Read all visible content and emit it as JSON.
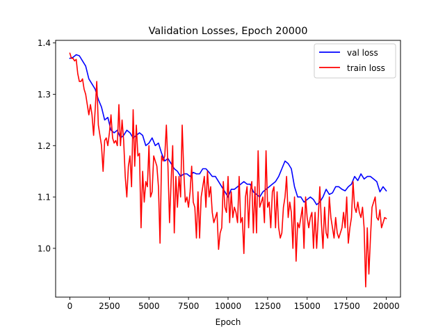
{
  "chart_data": {
    "type": "line",
    "title": "Validation Losses, Epoch 20000",
    "xlabel": "Epoch",
    "ylabel": "",
    "xlim": [
      -900,
      20900
    ],
    "ylim": [
      0.905,
      1.405
    ],
    "xticks": [
      0,
      2500,
      5000,
      7500,
      10000,
      12500,
      15000,
      17500,
      20000
    ],
    "yticks": [
      1.0,
      1.1,
      1.2,
      1.3,
      1.4
    ],
    "ytick_labels": [
      "1.0",
      "1.1",
      "1.2",
      "1.3",
      "1.4"
    ],
    "grid": false,
    "legend_position": "top-right",
    "series": [
      {
        "name": "val loss",
        "color": "#0000ff",
        "points": [
          [
            0,
            1.37
          ],
          [
            200,
            1.372
          ],
          [
            400,
            1.377
          ],
          [
            600,
            1.375
          ],
          [
            800,
            1.365
          ],
          [
            1000,
            1.355
          ],
          [
            1200,
            1.33
          ],
          [
            1400,
            1.32
          ],
          [
            1600,
            1.31
          ],
          [
            1800,
            1.29
          ],
          [
            2000,
            1.275
          ],
          [
            2200,
            1.25
          ],
          [
            2400,
            1.255
          ],
          [
            2600,
            1.23
          ],
          [
            2800,
            1.225
          ],
          [
            3000,
            1.23
          ],
          [
            3200,
            1.215
          ],
          [
            3400,
            1.22
          ],
          [
            3600,
            1.23
          ],
          [
            3800,
            1.225
          ],
          [
            4000,
            1.215
          ],
          [
            4200,
            1.22
          ],
          [
            4400,
            1.225
          ],
          [
            4600,
            1.22
          ],
          [
            4800,
            1.2
          ],
          [
            5000,
            1.205
          ],
          [
            5200,
            1.215
          ],
          [
            5400,
            1.2
          ],
          [
            5600,
            1.205
          ],
          [
            5800,
            1.185
          ],
          [
            6000,
            1.17
          ],
          [
            6200,
            1.175
          ],
          [
            6400,
            1.165
          ],
          [
            6600,
            1.155
          ],
          [
            6800,
            1.15
          ],
          [
            7000,
            1.14
          ],
          [
            7200,
            1.145
          ],
          [
            7400,
            1.145
          ],
          [
            7600,
            1.14
          ],
          [
            7800,
            1.148
          ],
          [
            8000,
            1.145
          ],
          [
            8200,
            1.145
          ],
          [
            8400,
            1.155
          ],
          [
            8600,
            1.155
          ],
          [
            8800,
            1.148
          ],
          [
            9000,
            1.14
          ],
          [
            9200,
            1.14
          ],
          [
            9400,
            1.13
          ],
          [
            9600,
            1.12
          ],
          [
            9800,
            1.11
          ],
          [
            10000,
            1.1
          ],
          [
            10200,
            1.115
          ],
          [
            10400,
            1.115
          ],
          [
            10600,
            1.12
          ],
          [
            10800,
            1.125
          ],
          [
            11000,
            1.13
          ],
          [
            11200,
            1.125
          ],
          [
            11400,
            1.125
          ],
          [
            11600,
            1.11
          ],
          [
            11800,
            1.105
          ],
          [
            12000,
            1.1
          ],
          [
            12200,
            1.11
          ],
          [
            12400,
            1.115
          ],
          [
            12600,
            1.12
          ],
          [
            12800,
            1.125
          ],
          [
            13000,
            1.13
          ],
          [
            13200,
            1.14
          ],
          [
            13400,
            1.155
          ],
          [
            13600,
            1.17
          ],
          [
            13800,
            1.165
          ],
          [
            14000,
            1.155
          ],
          [
            14200,
            1.12
          ],
          [
            14400,
            1.1
          ],
          [
            14600,
            1.1
          ],
          [
            14800,
            1.09
          ],
          [
            15000,
            1.095
          ],
          [
            15200,
            1.1
          ],
          [
            15400,
            1.095
          ],
          [
            15600,
            1.085
          ],
          [
            15800,
            1.09
          ],
          [
            16000,
            1.1
          ],
          [
            16200,
            1.115
          ],
          [
            16400,
            1.105
          ],
          [
            16600,
            1.108
          ],
          [
            16800,
            1.12
          ],
          [
            17000,
            1.12
          ],
          [
            17200,
            1.115
          ],
          [
            17400,
            1.112
          ],
          [
            17600,
            1.12
          ],
          [
            17800,
            1.125
          ],
          [
            18000,
            1.14
          ],
          [
            18200,
            1.132
          ],
          [
            18400,
            1.145
          ],
          [
            18600,
            1.135
          ],
          [
            18800,
            1.14
          ],
          [
            19000,
            1.14
          ],
          [
            19200,
            1.135
          ],
          [
            19400,
            1.13
          ],
          [
            19600,
            1.11
          ],
          [
            19800,
            1.12
          ],
          [
            20000,
            1.112
          ]
        ]
      },
      {
        "name": "train loss",
        "color": "#ff0000",
        "points": [
          [
            0,
            1.38
          ],
          [
            100,
            1.37
          ],
          [
            200,
            1.37
          ],
          [
            300,
            1.365
          ],
          [
            400,
            1.368
          ],
          [
            500,
            1.34
          ],
          [
            600,
            1.325
          ],
          [
            700,
            1.325
          ],
          [
            800,
            1.33
          ],
          [
            900,
            1.31
          ],
          [
            1000,
            1.3
          ],
          [
            1100,
            1.28
          ],
          [
            1200,
            1.26
          ],
          [
            1300,
            1.28
          ],
          [
            1400,
            1.26
          ],
          [
            1500,
            1.22
          ],
          [
            1600,
            1.27
          ],
          [
            1700,
            1.325
          ],
          [
            1800,
            1.24
          ],
          [
            1900,
            1.22
          ],
          [
            2000,
            1.2
          ],
          [
            2100,
            1.15
          ],
          [
            2200,
            1.21
          ],
          [
            2300,
            1.215
          ],
          [
            2400,
            1.2
          ],
          [
            2500,
            1.225
          ],
          [
            2600,
            1.26
          ],
          [
            2700,
            1.215
          ],
          [
            2800,
            1.205
          ],
          [
            2900,
            1.21
          ],
          [
            3000,
            1.2
          ],
          [
            3100,
            1.28
          ],
          [
            3200,
            1.2
          ],
          [
            3300,
            1.25
          ],
          [
            3400,
            1.21
          ],
          [
            3500,
            1.14
          ],
          [
            3600,
            1.1
          ],
          [
            3700,
            1.16
          ],
          [
            3800,
            1.18
          ],
          [
            3900,
            1.12
          ],
          [
            4000,
            1.27
          ],
          [
            4100,
            1.16
          ],
          [
            4200,
            1.24
          ],
          [
            4300,
            1.18
          ],
          [
            4400,
            1.185
          ],
          [
            4500,
            1.04
          ],
          [
            4600,
            1.15
          ],
          [
            4700,
            1.09
          ],
          [
            4800,
            1.13
          ],
          [
            4900,
            1.12
          ],
          [
            5000,
            1.2
          ],
          [
            5100,
            1.1
          ],
          [
            5200,
            1.11
          ],
          [
            5300,
            1.18
          ],
          [
            5400,
            1.17
          ],
          [
            5500,
            1.16
          ],
          [
            5600,
            1.12
          ],
          [
            5700,
            1.01
          ],
          [
            5800,
            1.18
          ],
          [
            5900,
            1.17
          ],
          [
            6000,
            1.18
          ],
          [
            6100,
            1.24
          ],
          [
            6200,
            1.16
          ],
          [
            6300,
            1.05
          ],
          [
            6400,
            1.13
          ],
          [
            6500,
            1.2
          ],
          [
            6600,
            1.03
          ],
          [
            6700,
            1.14
          ],
          [
            6800,
            1.08
          ],
          [
            6900,
            1.14
          ],
          [
            7000,
            1.1
          ],
          [
            7100,
            1.24
          ],
          [
            7200,
            1.15
          ],
          [
            7300,
            1.09
          ],
          [
            7400,
            1.1
          ],
          [
            7500,
            1.08
          ],
          [
            7600,
            1.11
          ],
          [
            7700,
            1.16
          ],
          [
            7800,
            1.09
          ],
          [
            7900,
            1.08
          ],
          [
            8000,
            1.02
          ],
          [
            8100,
            1.11
          ],
          [
            8200,
            1.02
          ],
          [
            8300,
            1.1
          ],
          [
            8400,
            1.12
          ],
          [
            8500,
            1.14
          ],
          [
            8600,
            1.08
          ],
          [
            8700,
            1.15
          ],
          [
            8800,
            1.1
          ],
          [
            8900,
            1.12
          ],
          [
            9000,
            1.07
          ],
          [
            9100,
            1.05
          ],
          [
            9200,
            1.06
          ],
          [
            9300,
            1.07
          ],
          [
            9400,
            0.998
          ],
          [
            9500,
            1.03
          ],
          [
            9600,
            1.04
          ],
          [
            9700,
            1.13
          ],
          [
            9800,
            1.08
          ],
          [
            9900,
            1.07
          ],
          [
            10000,
            1.14
          ],
          [
            10100,
            1.05
          ],
          [
            10200,
            1.11
          ],
          [
            10300,
            1.06
          ],
          [
            10400,
            1.08
          ],
          [
            10500,
            1.07
          ],
          [
            10600,
            1.05
          ],
          [
            10700,
            1.14
          ],
          [
            10800,
            1.05
          ],
          [
            10900,
            1.06
          ],
          [
            11000,
            0.99
          ],
          [
            11100,
            1.1
          ],
          [
            11200,
            1.12
          ],
          [
            11300,
            1.04
          ],
          [
            11400,
            1.11
          ],
          [
            11500,
            1.13
          ],
          [
            11600,
            1.03
          ],
          [
            11700,
            1.12
          ],
          [
            11800,
            1.03
          ],
          [
            11900,
            1.19
          ],
          [
            12000,
            1.08
          ],
          [
            12100,
            1.09
          ],
          [
            12200,
            1.1
          ],
          [
            12300,
            1.05
          ],
          [
            12400,
            1.19
          ],
          [
            12500,
            1.08
          ],
          [
            12600,
            1.09
          ],
          [
            12700,
            1.04
          ],
          [
            12800,
            1.11
          ],
          [
            12900,
            1.12
          ],
          [
            13000,
            1.04
          ],
          [
            13100,
            1.11
          ],
          [
            13200,
            1.04
          ],
          [
            13300,
            1.02
          ],
          [
            13400,
            1.03
          ],
          [
            13500,
            1.08
          ],
          [
            13600,
            1.1
          ],
          [
            13700,
            1.14
          ],
          [
            13800,
            1.06
          ],
          [
            13900,
            1.09
          ],
          [
            14000,
            1.07
          ],
          [
            14100,
            1.0
          ],
          [
            14200,
            1.1
          ],
          [
            14300,
            0.975
          ],
          [
            14400,
            1.05
          ],
          [
            14500,
            1.04
          ],
          [
            14600,
            1.06
          ],
          [
            14700,
            1.08
          ],
          [
            14800,
            1.0
          ],
          [
            14900,
            1.1
          ],
          [
            15000,
            1.06
          ],
          [
            15100,
            1.04
          ],
          [
            15200,
            1.06
          ],
          [
            15300,
            1.07
          ],
          [
            15400,
            1.0
          ],
          [
            15500,
            1.07
          ],
          [
            15600,
            1.0
          ],
          [
            15700,
            1.06
          ],
          [
            15800,
            1.12
          ],
          [
            15900,
            1.05
          ],
          [
            16000,
            1.0
          ],
          [
            16100,
            1.08
          ],
          [
            16200,
            1.03
          ],
          [
            16300,
            1.02
          ],
          [
            16400,
            1.1
          ],
          [
            16500,
            1.06
          ],
          [
            16600,
            1.04
          ],
          [
            16700,
            1.02
          ],
          [
            16800,
            1.06
          ],
          [
            16900,
            1.03
          ],
          [
            17000,
            1.02
          ],
          [
            17100,
            1.03
          ],
          [
            17200,
            1.04
          ],
          [
            17300,
            1.07
          ],
          [
            17400,
            1.04
          ],
          [
            17500,
            1.1
          ],
          [
            17600,
            1.01
          ],
          [
            17700,
            1.04
          ],
          [
            17800,
            1.06
          ],
          [
            17900,
            1.13
          ],
          [
            18000,
            1.08
          ],
          [
            18100,
            1.07
          ],
          [
            18200,
            1.09
          ],
          [
            18300,
            1.07
          ],
          [
            18400,
            1.06
          ],
          [
            18500,
            1.08
          ],
          [
            18600,
            1.04
          ],
          [
            18700,
            0.925
          ],
          [
            18800,
            1.04
          ],
          [
            18900,
            0.95
          ],
          [
            19000,
            1.02
          ],
          [
            19100,
            1.08
          ],
          [
            19200,
            1.09
          ],
          [
            19300,
            1.1
          ],
          [
            19400,
            1.06
          ],
          [
            19500,
            1.055
          ],
          [
            19600,
            1.075
          ],
          [
            19700,
            1.04
          ],
          [
            19800,
            1.05
          ],
          [
            19900,
            1.06
          ],
          [
            20000,
            1.058
          ]
        ]
      }
    ]
  }
}
